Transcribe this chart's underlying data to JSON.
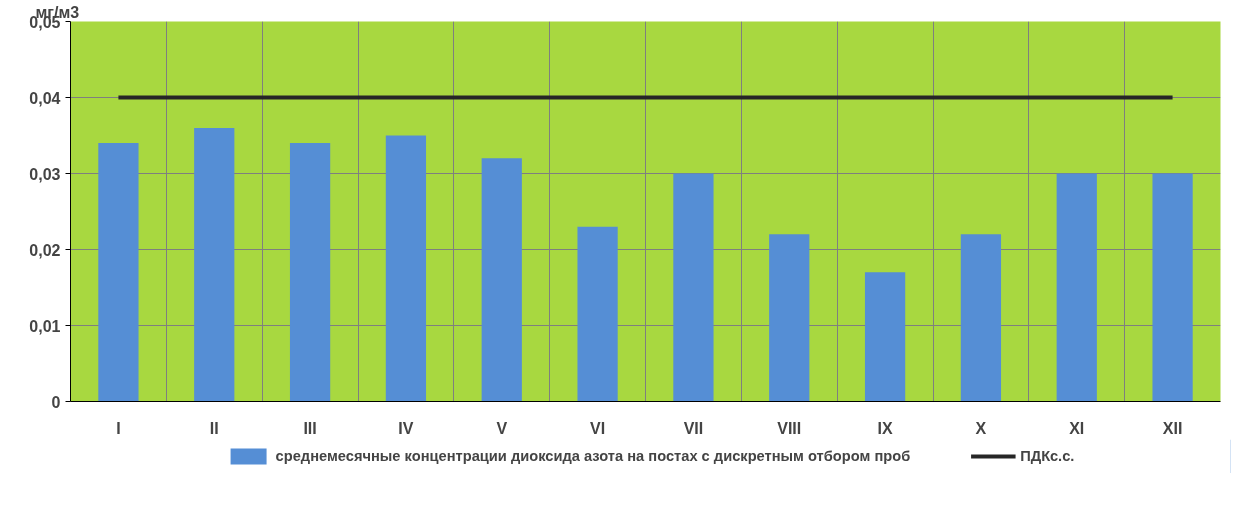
{
  "chart_data": {
    "type": "bar",
    "ylabel": "мг/м3",
    "categories": [
      "I",
      "II",
      "III",
      "IV",
      "V",
      "VI",
      "VII",
      "VIII",
      "IX",
      "X",
      "XI",
      "XII"
    ],
    "series": [
      {
        "name": "среднемесячные концентрации диоксида азота на постах с дискретным отбором проб",
        "color": "#558ed5",
        "values": [
          0.034,
          0.036,
          0.034,
          0.035,
          0.032,
          0.023,
          0.03,
          0.022,
          0.017,
          0.022,
          0.03,
          0.03
        ]
      },
      {
        "name": "ПДКс.с.",
        "type": "line",
        "color": "#262626",
        "values": [
          0.04,
          0.04,
          0.04,
          0.04,
          0.04,
          0.04,
          0.04,
          0.04,
          0.04,
          0.04,
          0.04,
          0.04
        ]
      }
    ],
    "ylim": [
      0,
      0.05
    ],
    "yticks": [
      {
        "value": 0,
        "label": "0"
      },
      {
        "value": 0.01,
        "label": "0,01"
      },
      {
        "value": 0.02,
        "label": "0,02"
      },
      {
        "value": 0.03,
        "label": "0,03"
      },
      {
        "value": 0.04,
        "label": "0,04"
      },
      {
        "value": 0.05,
        "label": "0,05"
      }
    ],
    "grid": true,
    "legend": "bottom"
  }
}
